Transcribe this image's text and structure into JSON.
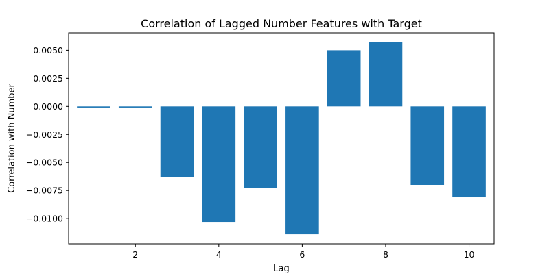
{
  "chart_data": {
    "type": "bar",
    "title": "Correlation of Lagged Number Features with Target",
    "xlabel": "Lag",
    "ylabel": "Correlation with Number",
    "categories": [
      1,
      2,
      3,
      4,
      5,
      6,
      7,
      8,
      9,
      10
    ],
    "values": [
      -0.0001,
      -0.0001,
      -0.0063,
      -0.0103,
      -0.0073,
      -0.0114,
      0.005,
      0.0057,
      -0.007,
      -0.0081
    ],
    "xlim": [
      0.4,
      10.6
    ],
    "ylim": [
      -0.01225,
      0.00655
    ],
    "xticks": [
      2,
      4,
      6,
      8,
      10
    ],
    "xtick_labels": [
      "2",
      "4",
      "6",
      "8",
      "10"
    ],
    "yticks": [
      0.005,
      0.0025,
      0.0,
      -0.0025,
      -0.005,
      -0.0075,
      -0.01
    ],
    "ytick_labels": [
      "0.0050",
      "0.0025",
      "0.0000",
      "−0.0025",
      "−0.0050",
      "−0.0075",
      "−0.0100"
    ],
    "bar_color": "#1f77b4",
    "grid": false,
    "legend": "none"
  }
}
